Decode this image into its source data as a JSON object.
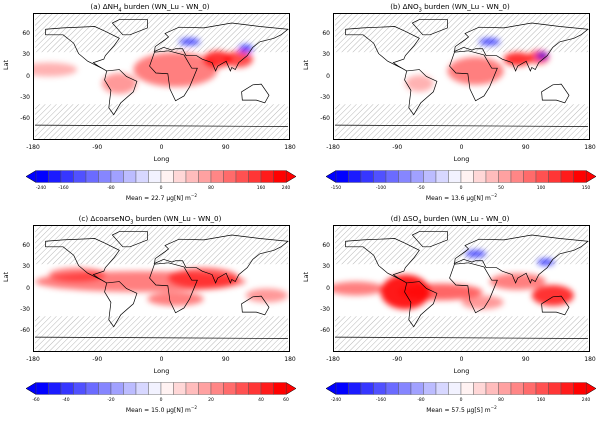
{
  "axes": {
    "ylabel": "Lat",
    "xlabel": "Long",
    "yticks": [
      "60",
      "30",
      "0",
      "-30",
      "-60"
    ],
    "xticks": [
      "-180",
      "-90",
      "0",
      "90",
      "180"
    ]
  },
  "colors": {
    "negative": "#0000ff",
    "positive": "#ff0000",
    "hatch": "#888888",
    "land_outline": "#000000"
  },
  "panels": [
    {
      "label": "(a) Δ",
      "species": "NH",
      "sub": "4",
      "suffix": " burden (WN_Lu - WN_0)",
      "cbar_ticks": [
        "-240",
        "-160",
        "-80",
        "0",
        "80",
        "160",
        "240"
      ],
      "mean": "Mean = 22.7 μg[N] m",
      "mean_exp": "−2"
    },
    {
      "label": "(b) Δ",
      "species": "NO",
      "sub": "3",
      "suffix": " burden (WN_Lu - WN_0)",
      "cbar_ticks": [
        "-150",
        "-100",
        "-50",
        "0",
        "50",
        "100",
        "150"
      ],
      "mean": "Mean = 13.6 μg[N] m",
      "mean_exp": "−2"
    },
    {
      "label": "(c) ΔcoarseNO",
      "species": "",
      "sub": "3",
      "suffix": " burden (WN_Lu - WN_0)",
      "cbar_ticks": [
        "-60",
        "-40",
        "-20",
        "0",
        "20",
        "40",
        "60"
      ],
      "mean": "Mean = 15.0 μg[N] m",
      "mean_exp": "−2"
    },
    {
      "label": "(d) Δ",
      "species": "SO",
      "sub": "4",
      "suffix": " burden (WN_Lu - WN_0)",
      "cbar_ticks": [
        "-240",
        "-160",
        "-80",
        "0",
        "80",
        "160",
        "240"
      ],
      "mean": "Mean = 57.5 μg[S] m",
      "mean_exp": "−2"
    }
  ]
}
